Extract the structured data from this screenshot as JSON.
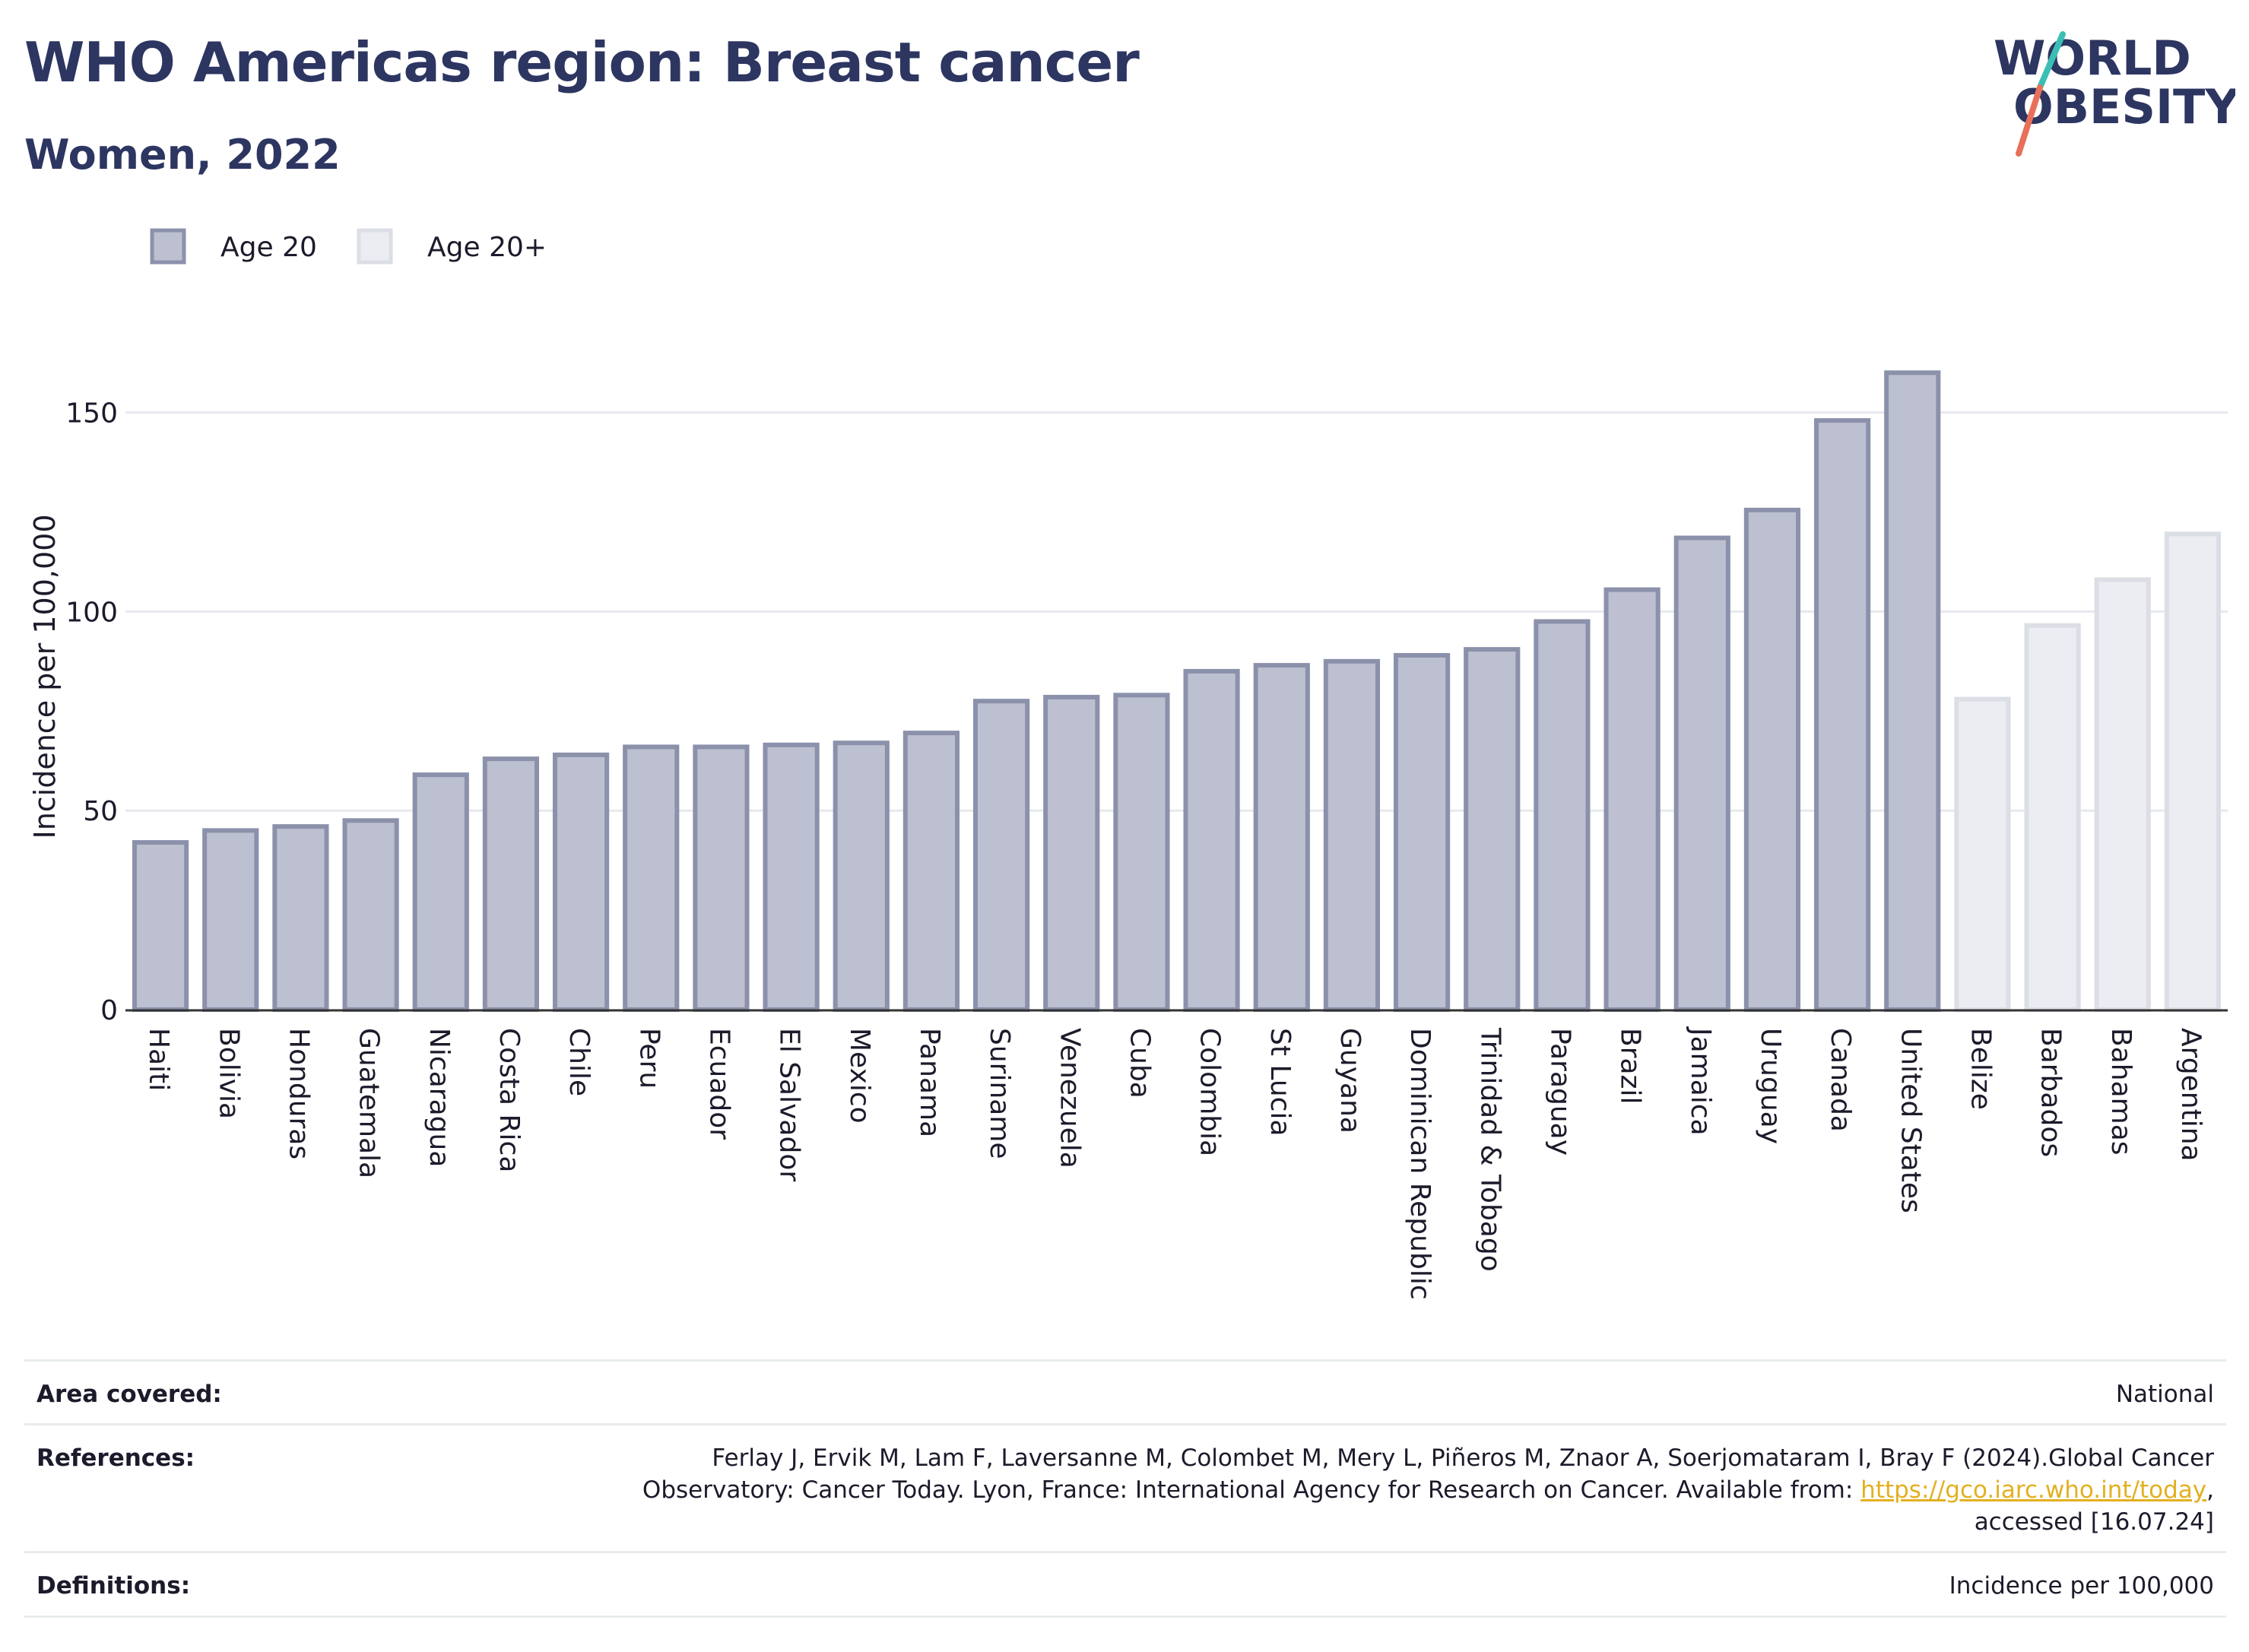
{
  "header": {
    "title": "WHO Americas region: Breast cancer",
    "subtitle": "Women, 2022"
  },
  "logo": {
    "line1": "WORLD",
    "line2": "OBESITY"
  },
  "colors": {
    "title": "#2d3561",
    "age20_fill": "#bdc0d0",
    "age20_stroke": "#8c91ab",
    "age20plus_fill": "#ecedf2",
    "age20plus_stroke": "#dcdee6",
    "logo_teal": "#3bbfb5",
    "logo_coral": "#e8705a"
  },
  "chart_data": {
    "type": "bar",
    "ylabel": "Incidence per 100,000",
    "xlabel": "",
    "ylim": [
      0,
      175
    ],
    "yticks": [
      0,
      50,
      100,
      150
    ],
    "grid": true,
    "legend": {
      "placement": "top-left",
      "entries": [
        "Age 20",
        "Age 20+"
      ]
    },
    "categories": [
      "Haiti",
      "Bolivia",
      "Honduras",
      "Guatemala",
      "Nicaragua",
      "Costa Rica",
      "Chile",
      "Peru",
      "Ecuador",
      "El Salvador",
      "Mexico",
      "Panama",
      "Suriname",
      "Venezuela",
      "Cuba",
      "Colombia",
      "St Lucia",
      "Guyana",
      "Dominican Republic",
      "Trinidad & Tobago",
      "Paraguay",
      "Brazil",
      "Jamaica",
      "Uruguay",
      "Canada",
      "United States",
      "Belize",
      "Barbados",
      "Bahamas",
      "Argentina"
    ],
    "values": [
      42,
      45,
      46,
      47.5,
      59,
      63,
      64,
      66,
      66,
      66.5,
      67,
      69.5,
      77.5,
      78.5,
      79,
      85,
      86.5,
      87.5,
      89,
      90.5,
      97.5,
      105.5,
      118.5,
      125.5,
      148,
      160,
      78,
      96.5,
      108,
      119.5
    ],
    "series_membership": [
      "Age 20",
      "Age 20",
      "Age 20",
      "Age 20",
      "Age 20",
      "Age 20",
      "Age 20",
      "Age 20",
      "Age 20",
      "Age 20",
      "Age 20",
      "Age 20",
      "Age 20",
      "Age 20",
      "Age 20",
      "Age 20",
      "Age 20",
      "Age 20",
      "Age 20",
      "Age 20",
      "Age 20",
      "Age 20",
      "Age 20",
      "Age 20",
      "Age 20",
      "Age 20",
      "Age 20+",
      "Age 20+",
      "Age 20+",
      "Age 20+"
    ]
  },
  "footer": {
    "area_label": "Area covered:",
    "area_value": "National",
    "references_label": "References:",
    "references_line1": "Ferlay J, Ervik M, Lam F, Laversanne M, Colombet M, Mery L, Piñeros M, Znaor A, Soerjomataram I, Bray F (2024).Global Cancer",
    "references_line2": "Observatory: Cancer Today. Lyon, France: International Agency for Research on Cancer. Available from: ",
    "references_link": "https://gco.iarc.who.int/today",
    "references_line2_end": ",",
    "references_line3": "accessed [16.07.24]",
    "definitions_label": "Definitions:",
    "definitions_value": "Incidence per 100,000"
  }
}
